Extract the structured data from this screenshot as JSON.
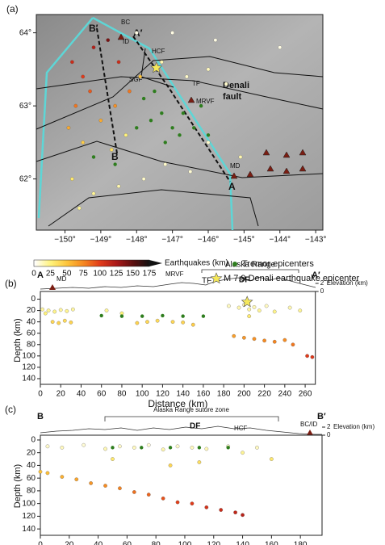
{
  "chart_data": [
    {
      "type": "map",
      "annotations": [
        "(a)",
        "B′",
        "BC",
        "A′",
        "ID",
        "HCF",
        "SGF",
        "TF",
        "Denali",
        "fault",
        "MRVF",
        "MD",
        "B",
        "A"
      ],
      "xlim": [
        -150.8,
        -142.8
      ],
      "ylim": [
        61.3,
        64.25
      ],
      "xticks": [
        {
          "value": -150,
          "label": "−150°"
        },
        {
          "value": -149,
          "label": "−149°"
        },
        {
          "value": -148,
          "label": "−148°"
        },
        {
          "value": -147,
          "label": "−147°"
        },
        {
          "value": -146,
          "label": "−146°"
        },
        {
          "value": -145,
          "label": "−145°"
        },
        {
          "value": -144,
          "label": "−144°"
        },
        {
          "value": -143,
          "label": "−143°"
        }
      ],
      "yticks": [
        {
          "value": 62,
          "label": "62°"
        },
        {
          "value": 63,
          "label": "63°"
        },
        {
          "value": 64,
          "label": "64°"
        }
      ],
      "colorbar": {
        "label": "Earthquakes (km)",
        "ticks": [
          0,
          25,
          50,
          75,
          100,
          125,
          150,
          175
        ],
        "colors": [
          "#ffffff",
          "#fff27a",
          "#fdc33a",
          "#f5851f",
          "#e03a1a",
          "#a81818",
          "#5a0f0f",
          "#111111"
        ]
      },
      "series": [
        {
          "marker": "depth",
          "x": [
            -149.8,
            -149.5,
            -149.3,
            -149.7,
            -149.2,
            -148.8,
            -148.5,
            -149.9,
            -149.5,
            -149.0,
            -148.6,
            -148.2,
            -148.7,
            -149.8,
            -149.2,
            -148.5,
            -147.8,
            -147.2,
            -146.5,
            -147.9,
            -147.3,
            -146.6,
            -146.0,
            -145.5,
            -148.0,
            -147.0,
            -145.8,
            -144.0,
            -148.3,
            -149.6,
            -146.0,
            -145.1
          ],
          "values": [
            63.6,
            63.4,
            63.2,
            63.0,
            63.8,
            63.9,
            63.6,
            62.7,
            62.5,
            62.8,
            63.0,
            63.2,
            62.4,
            62.0,
            61.8,
            61.9,
            62.0,
            62.2,
            62.1,
            63.4,
            63.6,
            63.4,
            63.5,
            63.3,
            64.0,
            64.0,
            63.9,
            63.8,
            62.6,
            61.6,
            62.5,
            62.3
          ],
          "depth": [
            110,
            100,
            90,
            80,
            120,
            140,
            110,
            60,
            45,
            60,
            70,
            80,
            35,
            30,
            20,
            15,
            10,
            10,
            8,
            50,
            15,
            10,
            12,
            10,
            5,
            5,
            5,
            5,
            25,
            20,
            10,
            15
          ]
        },
        {
          "name": "Tremor epicenters",
          "color": "#2e7d1e",
          "marker": "circle",
          "x": [
            -147.6,
            -147.3,
            -147.0,
            -146.7,
            -146.4,
            -147.2,
            -146.8,
            -147.8,
            -146.2,
            -148.0,
            -147.5,
            -146.0,
            -149.2,
            -148.6
          ],
          "values": [
            62.8,
            62.9,
            62.7,
            62.9,
            62.7,
            62.5,
            62.6,
            63.1,
            63.0,
            62.7,
            63.2,
            62.6,
            62.3,
            62.2
          ]
        },
        {
          "name": "M 7.9 Denali earthquake epicenter",
          "color": "#f5e85a",
          "marker": "star",
          "x": [
            -147.45
          ],
          "values": [
            63.52
          ]
        }
      ]
    },
    {
      "type": "scatter",
      "annotations": [
        "(b)",
        "A",
        "A′",
        "MD",
        "MRVF",
        "TF",
        "DF",
        "Alaska Range"
      ],
      "xlabel": "Distance (km)",
      "ylabel": "Depth (km)",
      "y2label": "Elevation (km)",
      "xlim": [
        0,
        270
      ],
      "ylim": [
        150,
        -5
      ],
      "y2lim": [
        0,
        4
      ],
      "xticks": [
        0,
        20,
        40,
        60,
        80,
        100,
        120,
        140,
        160,
        180,
        200,
        220,
        240,
        260
      ],
      "yticks": [
        0,
        20,
        40,
        60,
        80,
        100,
        120,
        140
      ],
      "y2ticks": [
        0,
        2
      ],
      "series": [
        {
          "marker": "depth",
          "x": [
            2,
            8,
            14,
            20,
            26,
            32,
            5,
            12,
            18,
            24,
            30,
            65,
            80,
            95,
            105,
            115,
            130,
            140,
            150,
            185,
            195,
            200,
            205,
            210,
            215,
            222,
            230,
            245,
            255,
            190,
            200,
            210,
            220,
            230,
            240,
            248,
            262,
            267,
            205
          ],
          "values": [
            18,
            20,
            22,
            19,
            21,
            18,
            25,
            40,
            42,
            38,
            41,
            20,
            25,
            42,
            40,
            38,
            40,
            41,
            45,
            12,
            15,
            10,
            18,
            14,
            20,
            12,
            22,
            15,
            20,
            65,
            68,
            70,
            73,
            75,
            72,
            80,
            100,
            102,
            30
          ]
        },
        {
          "color": "#2e7d1e",
          "marker": "circle",
          "x": [
            60,
            80,
            100,
            120,
            140,
            160
          ],
          "values": [
            29,
            30,
            30,
            29,
            30,
            30
          ]
        },
        {
          "color": "#f5e85a",
          "marker": "star",
          "x": [
            203
          ],
          "values": [
            5
          ]
        }
      ]
    },
    {
      "type": "scatter",
      "annotations": [
        "(c)",
        "B",
        "B′",
        "Alaska Range suture zone",
        "DF",
        "HCF",
        "BC/ID"
      ],
      "xlabel": "Distance (km)",
      "ylabel": "Depth (km)",
      "y2label": "Elevation (km)",
      "xlim": [
        0,
        195
      ],
      "ylim": [
        150,
        -5
      ],
      "y2lim": [
        0,
        4
      ],
      "xticks": [
        0,
        20,
        40,
        60,
        80,
        100,
        120,
        140,
        160,
        180
      ],
      "yticks": [
        0,
        20,
        40,
        60,
        80,
        100,
        120,
        140
      ],
      "y2ticks": [
        0,
        2
      ],
      "series": [
        {
          "marker": "depth",
          "x": [
            0,
            5,
            15,
            25,
            35,
            45,
            55,
            65,
            75,
            85,
            95,
            105,
            115,
            125,
            135,
            140,
            5,
            15,
            30,
            45,
            55,
            65,
            75,
            85,
            95,
            105,
            115,
            130,
            140,
            150,
            160,
            50,
            90,
            110
          ],
          "values": [
            50,
            52,
            58,
            62,
            68,
            72,
            76,
            82,
            86,
            92,
            98,
            100,
            106,
            110,
            114,
            118,
            10,
            12,
            8,
            14,
            10,
            12,
            8,
            15,
            10,
            12,
            14,
            10,
            20,
            12,
            30,
            30,
            40,
            35
          ]
        },
        {
          "color": "#2e7d1e",
          "marker": "circle",
          "x": [
            50,
            70,
            90,
            110,
            130
          ],
          "values": [
            12,
            12,
            12,
            12,
            12
          ]
        }
      ]
    }
  ]
}
